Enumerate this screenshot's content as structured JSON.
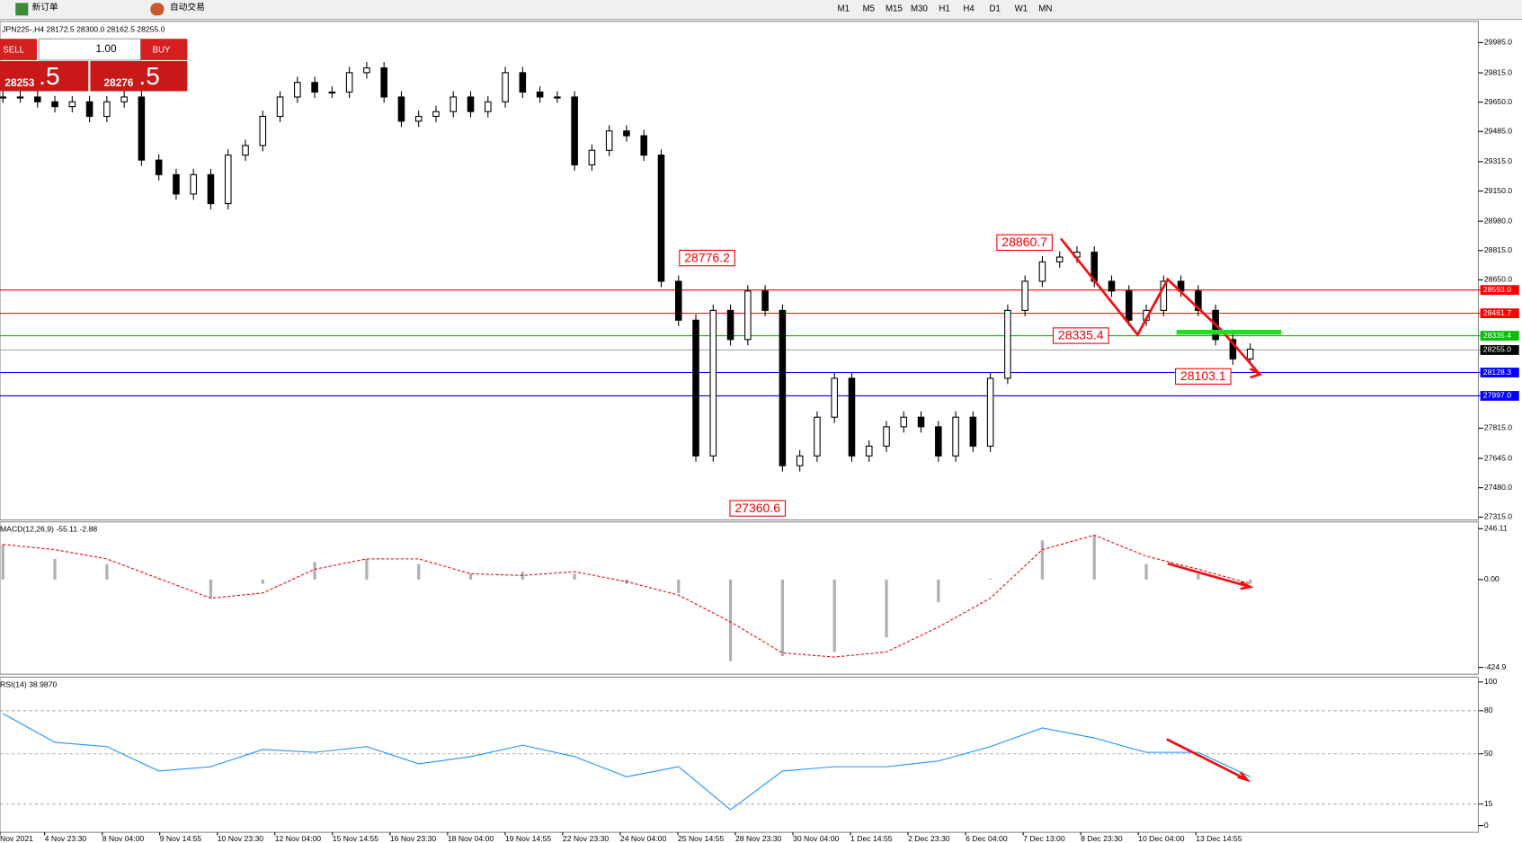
{
  "toolbar": {
    "buttons": [
      "新订单",
      "自动交易"
    ],
    "timeframes": [
      "M1",
      "M5",
      "M15",
      "M30",
      "H1",
      "H4",
      "D1",
      "W1",
      "MN"
    ]
  },
  "trade_panel": {
    "sell": "SELL",
    "lot": "1.00",
    "buy": "BUY",
    "sell_price": "28253",
    "sell_frac": ".5",
    "buy_price": "28276",
    "buy_frac": ".5"
  },
  "chart": {
    "type": "candlestick",
    "header": "JPN225-,H4  28172.5 28300.0 28162.5 28255.0",
    "ylim": [
      27304,
      30094
    ],
    "yticks": [
      {
        "value": 29985,
        "label": "29985.0"
      },
      {
        "value": 29815,
        "label": "29815.0"
      },
      {
        "value": 29650,
        "label": "29650.0"
      },
      {
        "value": 29485,
        "label": "29485.0"
      },
      {
        "value": 29315,
        "label": "29315.0"
      },
      {
        "value": 29150,
        "label": "29150.0"
      },
      {
        "value": 28980,
        "label": "28980.0"
      },
      {
        "value": 28815,
        "label": "28815.0"
      },
      {
        "value": 28650,
        "label": "28650.0"
      },
      {
        "value": 27815,
        "label": "27815.0"
      },
      {
        "value": 27645,
        "label": "27645.0"
      },
      {
        "value": 27480,
        "label": "27480.0"
      },
      {
        "value": 27315,
        "label": "27315.0"
      }
    ],
    "levels": [
      {
        "price": 28593,
        "label": "28593.0",
        "color": "#ff0000"
      },
      {
        "price": 28461.7,
        "label": "28461.7",
        "color": "#ff0000"
      },
      {
        "price": 28335.4,
        "label": "28335.4",
        "color": "#00c000"
      },
      {
        "price": 28255,
        "label": "28255.0",
        "color": "#000000"
      },
      {
        "price": 28128.3,
        "label": "28128.3",
        "color": "#0000ff"
      },
      {
        "price": 27997,
        "label": "27997.0",
        "color": "#0000ff"
      }
    ],
    "annotations": [
      28860.7,
      28776.2,
      27360.6,
      28335.4,
      28103.1
    ],
    "closes": [
      29679,
      29679,
      29652,
      29625,
      29652,
      29570,
      29652,
      29679,
      29324,
      29242,
      29133,
      29242,
      29079,
      29352,
      29406,
      29570,
      29679,
      29761,
      29707,
      29707,
      29816,
      29843,
      29679,
      29543,
      29570,
      29597,
      29679,
      29597,
      29652,
      29816,
      29707,
      29679,
      29679,
      29297,
      29379,
      29488,
      29461,
      29352,
      28642,
      28423,
      27659,
      28478,
      28314,
      28587,
      28478,
      27604,
      27659,
      27877,
      28096,
      27659,
      27714,
      27823,
      27877,
      27823,
      27659,
      27877,
      27714,
      28096,
      28478,
      28642,
      28751,
      28778,
      28806,
      28642,
      28587,
      28423,
      28478,
      28642,
      28587,
      28478,
      28314,
      28205,
      28260
    ],
    "x_labels": [
      "Nov 2021",
      "4 Nov 23:30",
      "8 Nov 04:00",
      "9 Nov 14:55",
      "10 Nov 23:30",
      "12 Nov 04:00",
      "15 Nov 14:55",
      "16 Nov 23:30",
      "18 Nov 04:00",
      "19 Nov 14:55",
      "22 Nov 23:30",
      "24 Nov 04:00",
      "25 Nov 14:55",
      "28 Nov 23:30",
      "30 Nov 04:00",
      "1 Dec 14:55",
      "2 Dec 23:30",
      "6 Dec 04:00",
      "7 Dec 13:00",
      "8 Dec 23:30",
      "10 Dec 04:00",
      "13 Dec 14:55"
    ]
  },
  "macd": {
    "label": "MACD(12,26,9) -55.11 -2.88",
    "ylim": [
      -458,
      279
    ],
    "yticks": [
      246.11,
      {
        "value": 0,
        "label": "0.00"
      },
      -424.9
    ],
    "histogram": [
      170,
      100,
      75,
      5,
      -90,
      -20,
      85,
      100,
      75,
      28,
      38,
      28,
      -20,
      -65,
      -395,
      -370,
      -350,
      -280,
      -110,
      5,
      190,
      215,
      75,
      28,
      -20
    ],
    "signal": [
      170,
      145,
      100,
      5,
      -90,
      -65,
      50,
      100,
      100,
      28,
      20,
      38,
      -10,
      -75,
      -205,
      -355,
      -375,
      -350,
      -230,
      -90,
      145,
      215,
      113,
      50,
      -20
    ]
  },
  "rsi": {
    "label": "RSI(14) 38.9870",
    "ylim": [
      -4.7,
      103.4
    ],
    "yticks": [
      100,
      80,
      50,
      15,
      0
    ],
    "levels": [
      80,
      50,
      15
    ],
    "values": [
      78,
      58,
      55,
      38,
      41,
      53,
      51,
      55,
      43,
      48,
      56,
      48,
      34,
      41,
      11,
      38,
      41,
      41,
      45,
      55,
      68,
      61,
      51,
      51,
      34
    ]
  }
}
